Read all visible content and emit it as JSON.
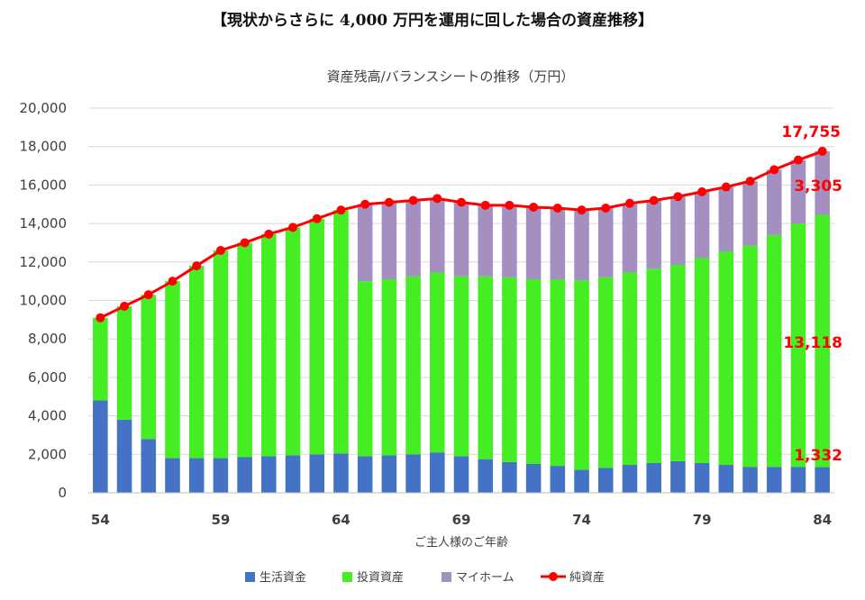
{
  "page_title": "【現状からさらに 4,000 万円を運用に回した場合の資産推移】",
  "chart_data": {
    "type": "bar",
    "title": "資産残高/バランスシートの推移（万円）",
    "xlabel": "ご主人様のご年齢",
    "ylabel": "",
    "ylim": [
      0,
      20000
    ],
    "yticks": [
      0,
      2000,
      4000,
      6000,
      8000,
      10000,
      12000,
      14000,
      16000,
      18000,
      20000
    ],
    "ytick_labels": [
      "0",
      "2,000",
      "4,000",
      "6,000",
      "8,000",
      "10,000",
      "12,000",
      "14,000",
      "16,000",
      "18,000",
      "20,000"
    ],
    "categories": [
      54,
      55,
      56,
      57,
      58,
      59,
      60,
      61,
      62,
      63,
      64,
      65,
      66,
      67,
      68,
      69,
      70,
      71,
      72,
      73,
      74,
      75,
      76,
      77,
      78,
      79,
      80,
      81,
      82,
      83,
      84
    ],
    "xtick_labels": [
      "54",
      "59",
      "64",
      "69",
      "74",
      "79",
      "84"
    ],
    "stacked": true,
    "grid": true,
    "legend_position": "bottom",
    "series": [
      {
        "name": "生活資金",
        "type": "bar",
        "color": "#4472c4",
        "values": [
          4800,
          3800,
          2800,
          1800,
          1800,
          1800,
          1850,
          1900,
          1950,
          2000,
          2050,
          1900,
          1950,
          2000,
          2100,
          1900,
          1750,
          1600,
          1500,
          1400,
          1200,
          1300,
          1450,
          1550,
          1650,
          1550,
          1450,
          1350,
          1350,
          1350,
          1332
        ]
      },
      {
        "name": "投資資産",
        "type": "bar",
        "color": "#44ee22",
        "values": [
          4300,
          5900,
          7500,
          9200,
          10000,
          10800,
          11150,
          11550,
          11850,
          12250,
          12650,
          9100,
          9150,
          9250,
          9350,
          9350,
          9500,
          9600,
          9600,
          9700,
          9850,
          9900,
          10000,
          10100,
          10200,
          10650,
          11100,
          11500,
          12050,
          12650,
          13118
        ]
      },
      {
        "name": "マイホーム",
        "type": "bar",
        "color": "#a390c0",
        "values": [
          0,
          0,
          0,
          0,
          0,
          0,
          0,
          0,
          0,
          0,
          0,
          4000,
          4000,
          3950,
          3850,
          3850,
          3700,
          3750,
          3750,
          3700,
          3650,
          3600,
          3600,
          3550,
          3550,
          3450,
          3350,
          3350,
          3400,
          3300,
          3305
        ]
      },
      {
        "name": "純資産",
        "type": "line",
        "color": "#ff0000",
        "values": [
          9100,
          9700,
          10300,
          11000,
          11800,
          12600,
          13000,
          13450,
          13800,
          14250,
          14700,
          15000,
          15100,
          15200,
          15300,
          15100,
          14950,
          14950,
          14850,
          14800,
          14700,
          14800,
          15050,
          15200,
          15400,
          15650,
          15900,
          16200,
          16800,
          17300,
          17755
        ]
      }
    ],
    "data_labels": {
      "net_last": "17,755",
      "home_last": "3,305",
      "invest_last": "13,118",
      "living_last": "1,332"
    }
  }
}
